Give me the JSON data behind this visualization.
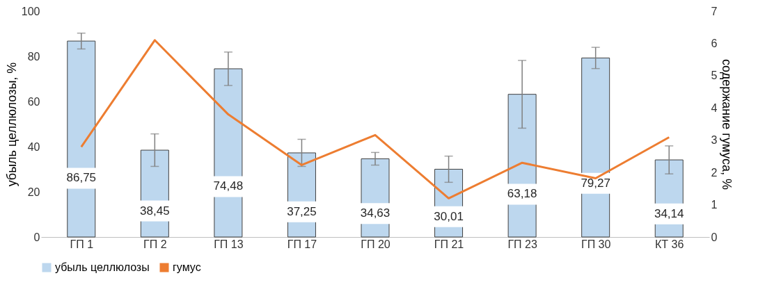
{
  "chart_data": {
    "type": "bar",
    "categories": [
      "ГП 1",
      "ГП 2",
      "ГП 13",
      "ГП 17",
      "ГП 20",
      "ГП 21",
      "ГП 23",
      "ГП 30",
      "КТ 36"
    ],
    "ylabel": "убыль целлюлозы, %",
    "y2label": "содержание гумуса, %",
    "ylim": [
      0,
      100
    ],
    "yticks": [
      0,
      20,
      40,
      60,
      80,
      100
    ],
    "y2lim": [
      0,
      7
    ],
    "y2ticks": [
      0,
      1,
      2,
      3,
      4,
      5,
      6,
      7
    ],
    "legend": "bottom",
    "grid": false,
    "series": [
      {
        "name": "убыль целлюлозы",
        "color": "#bdd7ee",
        "values": [
          86.75,
          38.45,
          74.48,
          37.25,
          34.63,
          30.01,
          63.18,
          79.27,
          34.14
        ],
        "errors": [
          3.5,
          7.2,
          7.4,
          6,
          2.8,
          5.8,
          15,
          4.7,
          6.2
        ],
        "value_labels": [
          "86,75",
          "38,45",
          "74,48",
          "37,25",
          "34,63",
          "30,01",
          "63,18",
          "79,27",
          "34,14"
        ]
      },
      {
        "name": "гумус",
        "type": "line",
        "axis": "y2",
        "color": "#ed7d31",
        "values": [
          2.79,
          6.1,
          3.8,
          2.23,
          3.16,
          1.2,
          2.3,
          1.82,
          3.09
        ]
      }
    ]
  }
}
